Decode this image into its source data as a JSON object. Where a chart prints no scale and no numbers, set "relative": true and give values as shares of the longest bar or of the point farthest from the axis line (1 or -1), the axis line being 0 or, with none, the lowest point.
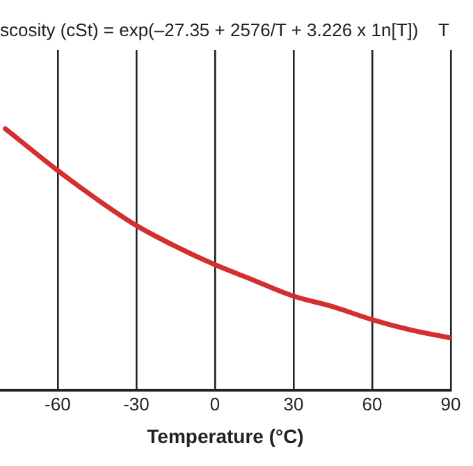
{
  "chart_data": {
    "type": "line",
    "title": "scosity (cSt) = exp(–27.35 + 2576/T + 3.226 x 1n[T])    T",
    "xlabel": "Temperature (°C)",
    "relative": true,
    "x": [
      -80,
      -60,
      -45,
      -30,
      -15,
      0,
      15,
      30,
      45,
      60,
      75,
      90
    ],
    "series": [
      {
        "color": "#d42f2f",
        "values": [
          1,
          0.84,
          0.73,
          0.63,
          0.55,
          0.48,
          0.42,
          0.36,
          0.32,
          0.27,
          0.23,
          0.2
        ]
      }
    ],
    "xlim": [
      -82,
      90
    ],
    "xticks": [
      -60,
      -30,
      0,
      30,
      60,
      90
    ],
    "grid": "x",
    "legend": false,
    "marker": "none",
    "line_style": "solid"
  }
}
